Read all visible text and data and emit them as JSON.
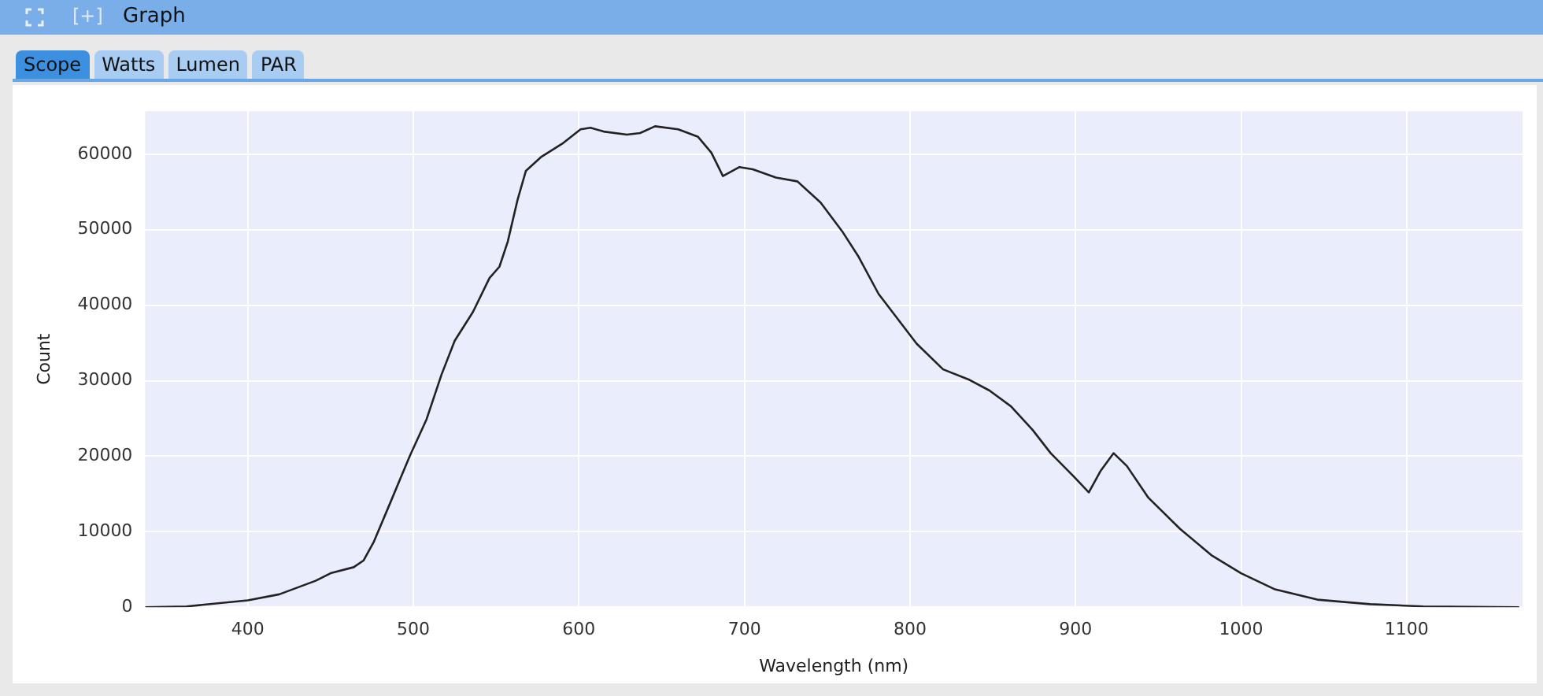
{
  "chart_data": {
    "type": "line",
    "title": "Graph",
    "annotations": [
      "[+]",
      "Scope",
      "Watts",
      "Lumen",
      "PAR"
    ],
    "xlabel": "Wavelength (nm)",
    "ylabel": "Count",
    "xlim": [
      338,
      1170
    ],
    "xticks": [
      400,
      500,
      600,
      700,
      800,
      900,
      1000,
      1100
    ],
    "ylim": [
      0,
      65700
    ],
    "yticks": [
      0,
      10000,
      20000,
      30000,
      40000,
      50000,
      60000
    ],
    "grid": true,
    "marker": "none",
    "line_style": "solid",
    "x": [
      338,
      363,
      400,
      419,
      441,
      450,
      464,
      470,
      476,
      486,
      498,
      508,
      517,
      525,
      536,
      546,
      552,
      557,
      563,
      568,
      577,
      590,
      601,
      607,
      615,
      629,
      637,
      646,
      660,
      672,
      680,
      687,
      697,
      705,
      719,
      732,
      746,
      759,
      769,
      781,
      804,
      820,
      836,
      848,
      861,
      874,
      885,
      899,
      908,
      915,
      923,
      931,
      944,
      963,
      982,
      1000,
      1020,
      1046,
      1078,
      1110,
      1168
    ],
    "series": [
      {
        "color": "#222222",
        "values": [
          0,
          100,
          900,
          1700,
          3500,
          4500,
          5300,
          6200,
          8600,
          13800,
          20100,
          24900,
          30800,
          35300,
          39100,
          43600,
          45100,
          48400,
          54000,
          57800,
          59600,
          61400,
          63300,
          63500,
          63000,
          62600,
          62800,
          63700,
          63300,
          62300,
          60200,
          57100,
          58300,
          58000,
          56900,
          56400,
          53600,
          49800,
          46400,
          41500,
          34900,
          31500,
          30100,
          28700,
          26600,
          23500,
          20400,
          17300,
          15200,
          18000,
          20400,
          18700,
          14500,
          10400,
          6900,
          4500,
          2400,
          1000,
          400,
          100,
          0
        ]
      }
    ]
  }
}
